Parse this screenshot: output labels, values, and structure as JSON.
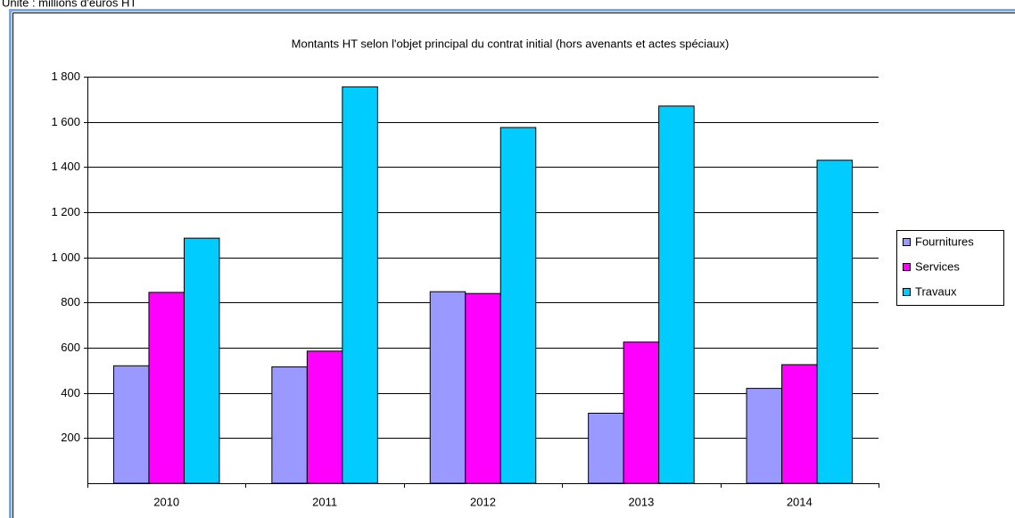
{
  "unit_note": "Unité : millions d'euros HT",
  "chart_data": {
    "type": "bar",
    "title": "Montants HT selon l'objet principal du contrat initial (hors avenants et actes spéciaux)",
    "categories": [
      "2010",
      "2011",
      "2012",
      "2013",
      "2014"
    ],
    "series": [
      {
        "name": "Fournitures",
        "color": "#9999ff",
        "values": [
          520,
          515,
          848,
          310,
          420
        ]
      },
      {
        "name": "Services",
        "color": "#ff00ff",
        "values": [
          845,
          585,
          840,
          625,
          525
        ]
      },
      {
        "name": "Travaux",
        "color": "#00ccff",
        "values": [
          1085,
          1755,
          1575,
          1670,
          1430
        ]
      }
    ],
    "ylim": [
      0,
      1800
    ],
    "yticks": [
      200,
      400,
      600,
      800,
      {
        "value": 1000,
        "label": "1 000"
      },
      {
        "value": 1200,
        "label": "1 200"
      },
      {
        "value": 1400,
        "label": "1 400"
      },
      {
        "value": 1600,
        "label": "1 600"
      },
      {
        "value": 1800,
        "label": "1 800"
      }
    ],
    "grid": true,
    "legend": "right"
  }
}
